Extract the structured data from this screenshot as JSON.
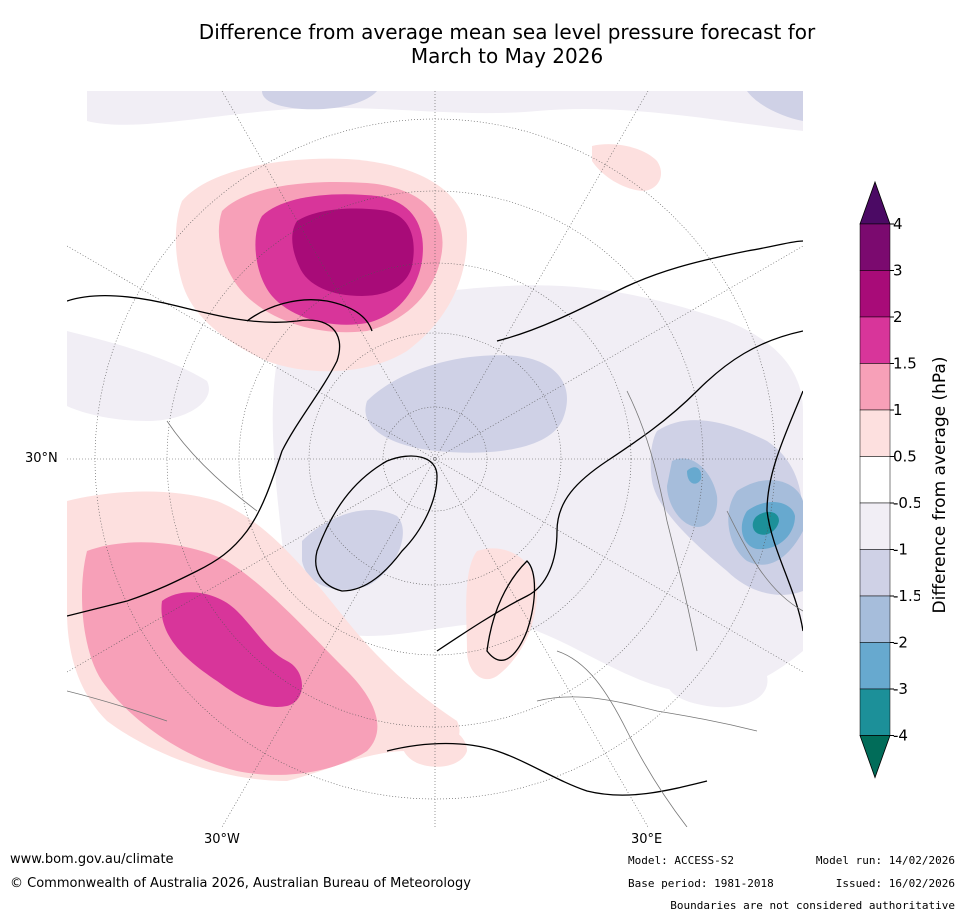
{
  "title": {
    "line1": "Difference from average mean sea level pressure forecast for",
    "line2": "March to May 2026"
  },
  "map_labels": {
    "lat_30n": "30°N",
    "lon_30w": "30°W",
    "lon_30e": "30°E"
  },
  "colorbar": {
    "title": "Difference from average (hPa)",
    "ticks": [
      "4",
      "3",
      "2",
      "1.5",
      "1",
      "0.5",
      "-0.5",
      "-1",
      "-1.5",
      "-2",
      "-3",
      "-4"
    ],
    "bins": [
      {
        "range": "3 to 4",
        "color": "#7b0a6f"
      },
      {
        "range": "2 to 3",
        "color": "#a80b78"
      },
      {
        "range": "1.5 to 2",
        "color": "#d8359a"
      },
      {
        "range": "1 to 1.5",
        "color": "#f7a0b8"
      },
      {
        "range": "0.5 to 1",
        "color": "#fde0df"
      },
      {
        "range": "-0.5 to 0.5",
        "color": "#ffffff"
      },
      {
        "range": "-1 to -0.5",
        "color": "#f1eef5"
      },
      {
        "range": "-1.5 to -1",
        "color": "#cfd1e6"
      },
      {
        "range": "-2 to -1.5",
        "color": "#a6bddb"
      },
      {
        "range": "-3 to -2",
        "color": "#67a9cf"
      },
      {
        "range": "-4 to -3",
        "color": "#1c9099"
      }
    ],
    "over_color": "#4b0a64",
    "under_color": "#016c59"
  },
  "footer": {
    "url": "www.bom.gov.au/climate",
    "copyright": "© Commonwealth of Australia 2026, Australian Bureau of Meteorology",
    "model": "Model: ACCESS-S2",
    "base_period": "Base period: 1981-2018",
    "model_run": "Model run: 14/02/2026",
    "issued": "Issued: 16/02/2026",
    "disclaimer": "Boundaries are not considered authoritative"
  }
}
